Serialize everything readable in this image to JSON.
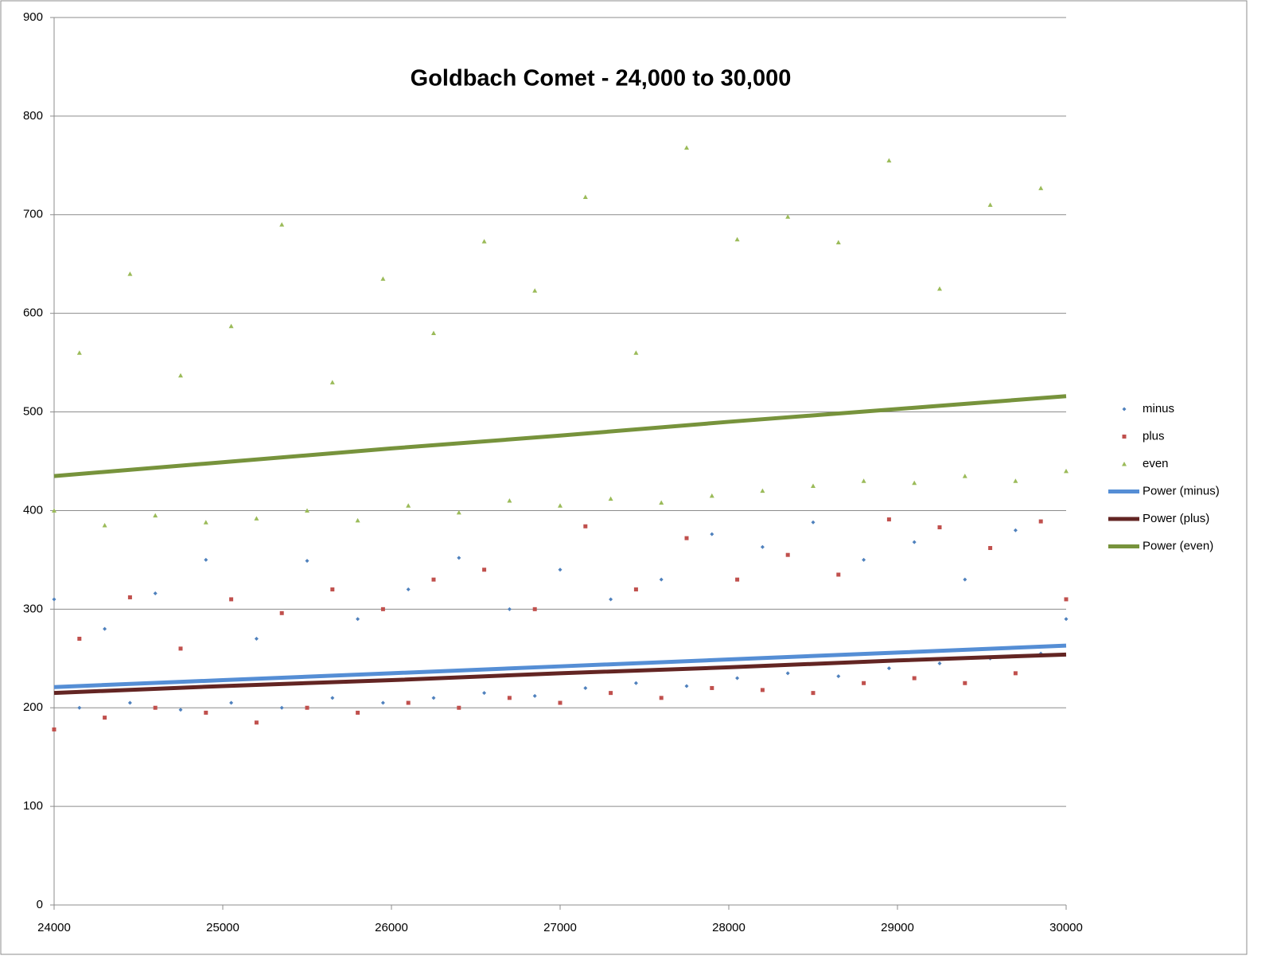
{
  "chart_data": {
    "type": "scatter",
    "title": "Goldbach Comet - 24,000 to 30,000",
    "x": [
      24000,
      24150,
      24300,
      24450,
      24600,
      24750,
      24900,
      25050,
      25200,
      25350,
      25500,
      25650,
      25800,
      25950,
      26100,
      26250,
      26400,
      26550,
      26700,
      26850,
      27000,
      27150,
      27300,
      27450,
      27600,
      27750,
      27900,
      28050,
      28200,
      28350,
      28500,
      28650,
      28800,
      28950,
      29100,
      29250,
      29400,
      29550,
      29700,
      29850,
      30000
    ],
    "series": [
      {
        "name": "minus",
        "type": "scatter",
        "marker": "diamond",
        "color": "#4f81bd",
        "values": [
          310,
          200,
          280,
          205,
          316,
          198,
          350,
          205,
          270,
          200,
          349,
          210,
          290,
          205,
          320,
          210,
          352,
          215,
          300,
          212,
          340,
          220,
          310,
          225,
          330,
          222,
          376,
          230,
          363,
          235,
          388,
          232,
          350,
          240,
          368,
          245,
          330,
          250,
          380,
          255,
          290
        ]
      },
      {
        "name": "plus",
        "type": "scatter",
        "marker": "square",
        "color": "#c0504d",
        "values": [
          178,
          270,
          190,
          312,
          200,
          260,
          195,
          310,
          185,
          296,
          200,
          320,
          195,
          300,
          205,
          330,
          200,
          340,
          210,
          300,
          205,
          384,
          215,
          320,
          210,
          372,
          220,
          330,
          218,
          355,
          215,
          335,
          225,
          391,
          230,
          383,
          225,
          362,
          235,
          389,
          310
        ]
      },
      {
        "name": "even",
        "type": "scatter",
        "marker": "triangle",
        "color": "#9bbb59",
        "values": [
          400,
          560,
          385,
          640,
          395,
          537,
          388,
          587,
          392,
          690,
          400,
          530,
          390,
          635,
          405,
          580,
          398,
          673,
          410,
          623,
          405,
          718,
          412,
          560,
          408,
          768,
          415,
          675,
          420,
          698,
          425,
          672,
          430,
          755,
          428,
          625,
          435,
          710,
          430,
          727,
          440
        ]
      },
      {
        "name": "Power (minus)",
        "type": "line",
        "color": "#558ed5",
        "x": [
          24000,
          25000,
          26000,
          27000,
          28000,
          29000,
          30000
        ],
        "values": [
          221,
          228,
          235,
          242,
          249,
          256,
          263
        ]
      },
      {
        "name": "Power (plus)",
        "type": "line",
        "color": "#632523",
        "x": [
          24000,
          25000,
          26000,
          27000,
          28000,
          29000,
          30000
        ],
        "values": [
          215,
          222,
          228,
          235,
          241,
          248,
          254
        ]
      },
      {
        "name": "Power (even)",
        "type": "line",
        "color": "#77933c",
        "x": [
          24000,
          25000,
          26000,
          27000,
          28000,
          29000,
          30000
        ],
        "values": [
          435,
          449,
          463,
          476,
          490,
          503,
          516
        ]
      }
    ],
    "xlim": [
      24000,
      30000
    ],
    "xticks": [
      24000,
      25000,
      26000,
      27000,
      28000,
      29000,
      30000
    ],
    "ylim": [
      0,
      900
    ],
    "yticks": [
      0,
      100,
      200,
      300,
      400,
      500,
      600,
      700,
      800,
      900
    ],
    "grid": true,
    "legend": "right"
  }
}
